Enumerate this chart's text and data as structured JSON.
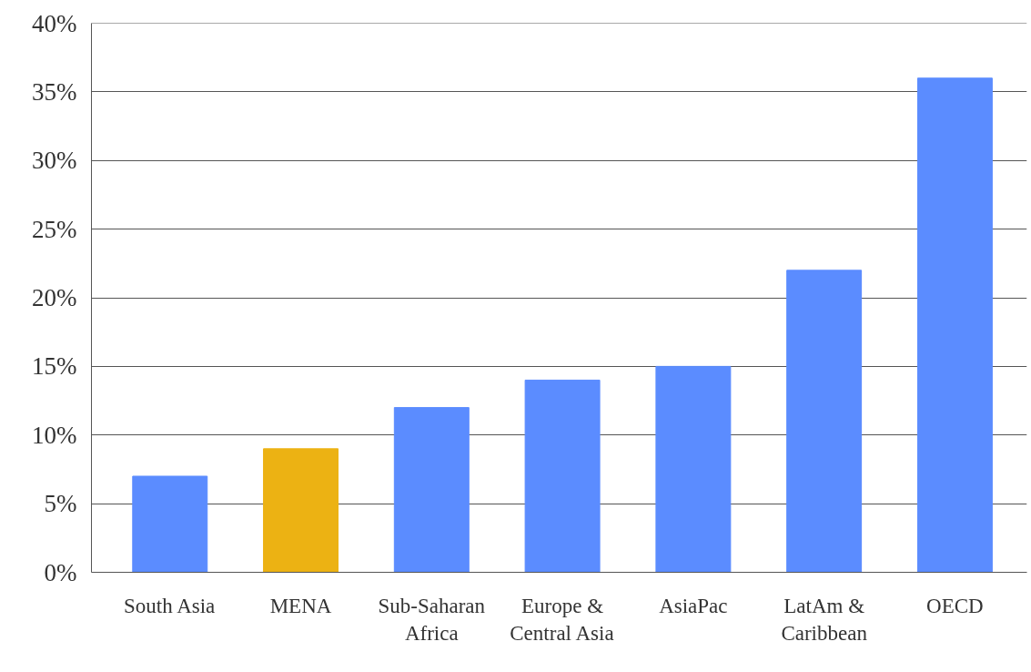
{
  "chart_data": {
    "type": "bar",
    "categories": [
      "South Asia",
      "MENA",
      "Sub-Saharan Africa",
      "Europe & Central Asia",
      "AsiaPac",
      "LatAm & Caribbean",
      "OECD"
    ],
    "values": [
      7,
      9,
      12,
      14,
      15,
      22,
      36
    ],
    "colors": [
      "#5b8cff",
      "#ecb213",
      "#5b8cff",
      "#5b8cff",
      "#5b8cff",
      "#5b8cff",
      "#5b8cff"
    ],
    "ylim": [
      0,
      40
    ],
    "yticks": [
      {
        "value": 0,
        "label": "0%"
      },
      {
        "value": 5,
        "label": "5%"
      },
      {
        "value": 10,
        "label": "10%"
      },
      {
        "value": 15,
        "label": "15%"
      },
      {
        "value": 20,
        "label": "20%"
      },
      {
        "value": 25,
        "label": "25%"
      },
      {
        "value": 30,
        "label": "30%"
      },
      {
        "value": 35,
        "label": "35%"
      },
      {
        "value": 40,
        "label": "40%"
      }
    ],
    "grid": "y"
  }
}
